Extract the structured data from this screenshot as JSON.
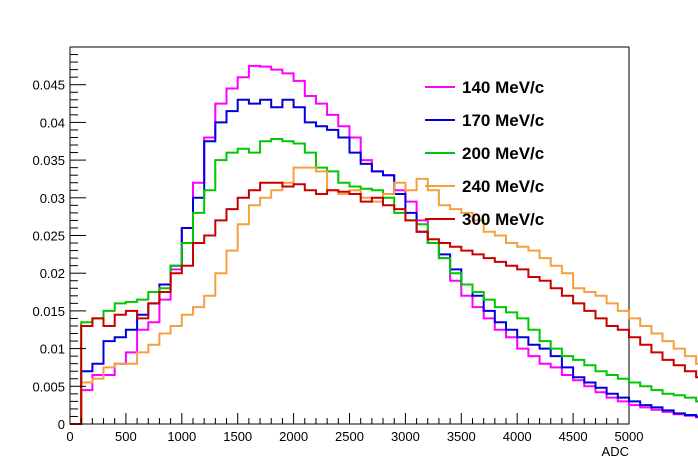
{
  "chart_data": {
    "type": "line",
    "step": true,
    "title": "",
    "xlabel": "ADC",
    "ylabel": "",
    "xlim": [
      0,
      5000
    ],
    "ylim": [
      0,
      0.05
    ],
    "bin_width": 100,
    "x_ticks": [
      0,
      500,
      1000,
      1500,
      2000,
      2500,
      3000,
      3500,
      4000,
      4500,
      5000
    ],
    "x_tick_labels": [
      "0",
      "500",
      "1000",
      "1500",
      "2000",
      "2500",
      "3000",
      "3500",
      "4000",
      "4500",
      "5000"
    ],
    "y_ticks": [
      0,
      0.005,
      0.01,
      0.015,
      0.02,
      0.025,
      0.03,
      0.035,
      0.04,
      0.045
    ],
    "y_tick_labels": [
      "0",
      "0.005",
      "0.01",
      "0.015",
      "0.02",
      "0.025",
      "0.03",
      "0.035",
      "0.04",
      "0.045"
    ],
    "legend_position": "top-right",
    "grid": false,
    "series": [
      {
        "name": "140 MeV/c",
        "color": "#ff00ff",
        "values": [
          0.0,
          0.0045,
          0.0065,
          0.0065,
          0.008,
          0.0095,
          0.0125,
          0.0135,
          0.0165,
          0.0205,
          0.026,
          0.032,
          0.038,
          0.0425,
          0.0445,
          0.046,
          0.0475,
          0.0474,
          0.047,
          0.0465,
          0.0455,
          0.0435,
          0.0425,
          0.041,
          0.0395,
          0.038,
          0.035,
          0.0335,
          0.033,
          0.031,
          0.0295,
          0.027,
          0.024,
          0.022,
          0.019,
          0.017,
          0.0155,
          0.014,
          0.0125,
          0.0115,
          0.01,
          0.009,
          0.008,
          0.0075,
          0.0065,
          0.0058,
          0.005,
          0.0042,
          0.0035,
          0.003,
          0.0025,
          0.0022,
          0.0019,
          0.0016,
          0.0013,
          0.0011,
          0.0009,
          0.0007,
          0.0005,
          0.0004
        ]
      },
      {
        "name": "170 MeV/c",
        "color": "#0000dd",
        "values": [
          0.0,
          0.007,
          0.008,
          0.011,
          0.0115,
          0.0125,
          0.0145,
          0.016,
          0.0185,
          0.021,
          0.026,
          0.03,
          0.0375,
          0.04,
          0.0415,
          0.043,
          0.0425,
          0.043,
          0.042,
          0.043,
          0.042,
          0.04,
          0.0395,
          0.039,
          0.038,
          0.036,
          0.0345,
          0.0335,
          0.033,
          0.0305,
          0.028,
          0.0255,
          0.024,
          0.0225,
          0.0205,
          0.0185,
          0.017,
          0.015,
          0.0135,
          0.0125,
          0.0115,
          0.0105,
          0.01,
          0.009,
          0.0075,
          0.0062,
          0.0055,
          0.0048,
          0.004,
          0.0035,
          0.003,
          0.0025,
          0.0022,
          0.0018,
          0.0014,
          0.0012,
          0.001,
          0.0009,
          0.0008,
          0.0007
        ]
      },
      {
        "name": "200 MeV/c",
        "color": "#00c800",
        "values": [
          0.0,
          0.0135,
          0.014,
          0.015,
          0.016,
          0.0162,
          0.0165,
          0.0175,
          0.018,
          0.021,
          0.024,
          0.028,
          0.031,
          0.035,
          0.036,
          0.0365,
          0.036,
          0.0375,
          0.0378,
          0.0375,
          0.0372,
          0.036,
          0.034,
          0.0335,
          0.032,
          0.0315,
          0.0312,
          0.031,
          0.03,
          0.028,
          0.027,
          0.0265,
          0.024,
          0.022,
          0.02,
          0.0185,
          0.0175,
          0.0165,
          0.0155,
          0.0148,
          0.014,
          0.0125,
          0.011,
          0.01,
          0.009,
          0.0085,
          0.0078,
          0.007,
          0.0065,
          0.006,
          0.0055,
          0.005,
          0.0045,
          0.004,
          0.0038,
          0.0035,
          0.003,
          0.0028,
          0.0025,
          0.0022
        ]
      },
      {
        "name": "240 MeV/c",
        "color": "#f5a040",
        "values": [
          0.0,
          0.0055,
          0.006,
          0.0075,
          0.008,
          0.008,
          0.0095,
          0.0105,
          0.012,
          0.013,
          0.0145,
          0.0155,
          0.017,
          0.02,
          0.023,
          0.0265,
          0.029,
          0.03,
          0.031,
          0.032,
          0.034,
          0.034,
          0.0335,
          0.031,
          0.0305,
          0.031,
          0.03,
          0.0295,
          0.0305,
          0.032,
          0.031,
          0.0325,
          0.031,
          0.029,
          0.0285,
          0.028,
          0.027,
          0.0255,
          0.025,
          0.024,
          0.0235,
          0.023,
          0.022,
          0.021,
          0.02,
          0.018,
          0.0175,
          0.017,
          0.016,
          0.015,
          0.014,
          0.013,
          0.012,
          0.011,
          0.01,
          0.009,
          0.008,
          0.007,
          0.006,
          0.005
        ]
      },
      {
        "name": "300 MeV/c",
        "color": "#c80000",
        "values": [
          0.0,
          0.013,
          0.014,
          0.013,
          0.0145,
          0.015,
          0.014,
          0.016,
          0.0175,
          0.02,
          0.021,
          0.024,
          0.025,
          0.027,
          0.0285,
          0.03,
          0.031,
          0.032,
          0.032,
          0.0315,
          0.0318,
          0.031,
          0.0305,
          0.031,
          0.0308,
          0.0305,
          0.0295,
          0.03,
          0.029,
          0.0285,
          0.027,
          0.0255,
          0.0245,
          0.024,
          0.0235,
          0.023,
          0.0225,
          0.022,
          0.0215,
          0.021,
          0.0205,
          0.0195,
          0.019,
          0.018,
          0.017,
          0.016,
          0.015,
          0.014,
          0.013,
          0.0125,
          0.0115,
          0.0105,
          0.0095,
          0.0085,
          0.0078,
          0.007,
          0.0062,
          0.0055,
          0.005,
          0.0045
        ]
      }
    ]
  }
}
